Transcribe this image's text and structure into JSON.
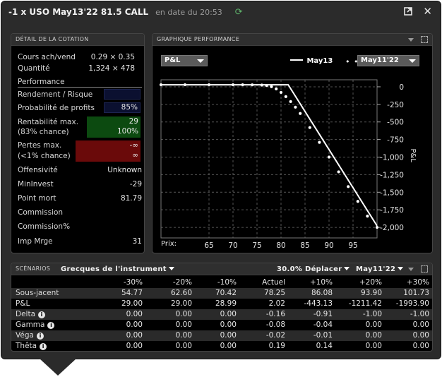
{
  "window": {
    "title": "-1 x USO May13'22 81.5 CALL",
    "subtitle": "en date du 20:53"
  },
  "quote": {
    "header": "DÉTAIL DE LA COTATION",
    "bid_ask_label": "Cours ach/vend",
    "bid_ask_value": "0.29 × 0.35",
    "qty_label": "Quantité",
    "qty_value": "1,324 × 478",
    "perf_label": "Performance",
    "yield_label": "Rendement / Risque",
    "yield_value": "",
    "prob_label": "Probabilité de profits",
    "prob_value": "85%",
    "max_profit_label": "Rentabilité max.",
    "max_profit_sub": "(83% chance)",
    "max_profit_value": "29",
    "max_profit_pct": "100%",
    "max_loss_label": "Pertes max.",
    "max_loss_sub": "(<1% chance)",
    "max_loss_value1": "-∞",
    "max_loss_value2": "∞",
    "aggr_label": "Offensivité",
    "aggr_value": "Unknown",
    "mininv_label": "MinInvest",
    "mininv_value": "-29",
    "breakeven_label": "Point mort",
    "breakeven_value": "81.79",
    "commission_label": "Commission",
    "commission_pct_label": "Commission%",
    "margin_label": "Imp Mrge",
    "margin_value": "31"
  },
  "chart_panel": {
    "header": "GRAPHIQUE PERFORMANCE",
    "metric_select": "P&L",
    "legend_solid": "May13",
    "legend_dotted_select": "May11'22",
    "price_label": "Prix:"
  },
  "chart_data": {
    "type": "line",
    "ylabel": "P&L",
    "xlim": [
      55,
      100
    ],
    "ylim": [
      -2150,
      100
    ],
    "x_ticks": [
      65,
      70,
      75,
      80,
      85,
      90,
      95
    ],
    "y_ticks": [
      0,
      -250,
      -500,
      -750,
      -1000,
      -1250,
      -1500,
      -1750,
      -2000
    ],
    "y_tick_labels": [
      "0",
      "-250",
      "-500",
      "-750",
      "-1,000",
      "-1,250",
      "-1,500",
      "-1,750",
      "-2,000"
    ],
    "series": [
      {
        "name": "May13",
        "style": "solid",
        "x": [
          55,
          81.5,
          100
        ],
        "y": [
          29,
          29,
          -1978
        ]
      },
      {
        "name": "May11'22",
        "style": "dotted",
        "x": [
          55,
          60,
          65,
          70,
          72,
          74,
          76,
          77,
          78,
          79,
          80,
          81,
          82,
          83,
          84,
          86,
          88,
          90,
          92,
          94,
          96,
          98,
          100
        ],
        "y": [
          29,
          29,
          29,
          29,
          29,
          28,
          25,
          18,
          2,
          -30,
          -80,
          -140,
          -210,
          -290,
          -380,
          -580,
          -790,
          -1000,
          -1210,
          -1420,
          -1630,
          -1840,
          -2000
        ]
      }
    ],
    "colors": {
      "solid": "#ffffff",
      "dotted": "#ffffff",
      "grid": "#555555"
    }
  },
  "scenarios": {
    "header": "SCÉNARIOS",
    "greeks_select": "Grecques de l'instrument",
    "move_select": "30.0% Déplacer",
    "date_select": "May11'22",
    "columns": [
      "-30%",
      "-20%",
      "-10%",
      "Actuel",
      "+10%",
      "+20%",
      "+30%"
    ],
    "rows": [
      {
        "label": "Sous-jacent",
        "info": false,
        "values": [
          "54.77",
          "62.60",
          "70.42",
          "78.25",
          "86.08",
          "93.90",
          "101.73"
        ]
      },
      {
        "label": "P&L",
        "info": false,
        "values": [
          "29.00",
          "29.00",
          "28.99",
          "2.02",
          "-443.13",
          "-1211.42",
          "-1993.90"
        ]
      },
      {
        "label": "Delta",
        "info": true,
        "values": [
          "0.00",
          "0.00",
          "0.00",
          "-0.16",
          "-0.91",
          "-1.00",
          "-1.00"
        ]
      },
      {
        "label": "Gamma",
        "info": true,
        "values": [
          "0.00",
          "0.00",
          "0.00",
          "-0.08",
          "-0.04",
          "0.00",
          "0.00"
        ]
      },
      {
        "label": "Véga",
        "info": true,
        "values": [
          "0.00",
          "0.00",
          "0.00",
          "-0.02",
          "-0.01",
          "0.00",
          "0.00"
        ]
      },
      {
        "label": "Thêta",
        "info": true,
        "values": [
          "0.00",
          "0.00",
          "0.00",
          "0.19",
          "0.14",
          "0.00",
          "0.00"
        ]
      }
    ]
  }
}
